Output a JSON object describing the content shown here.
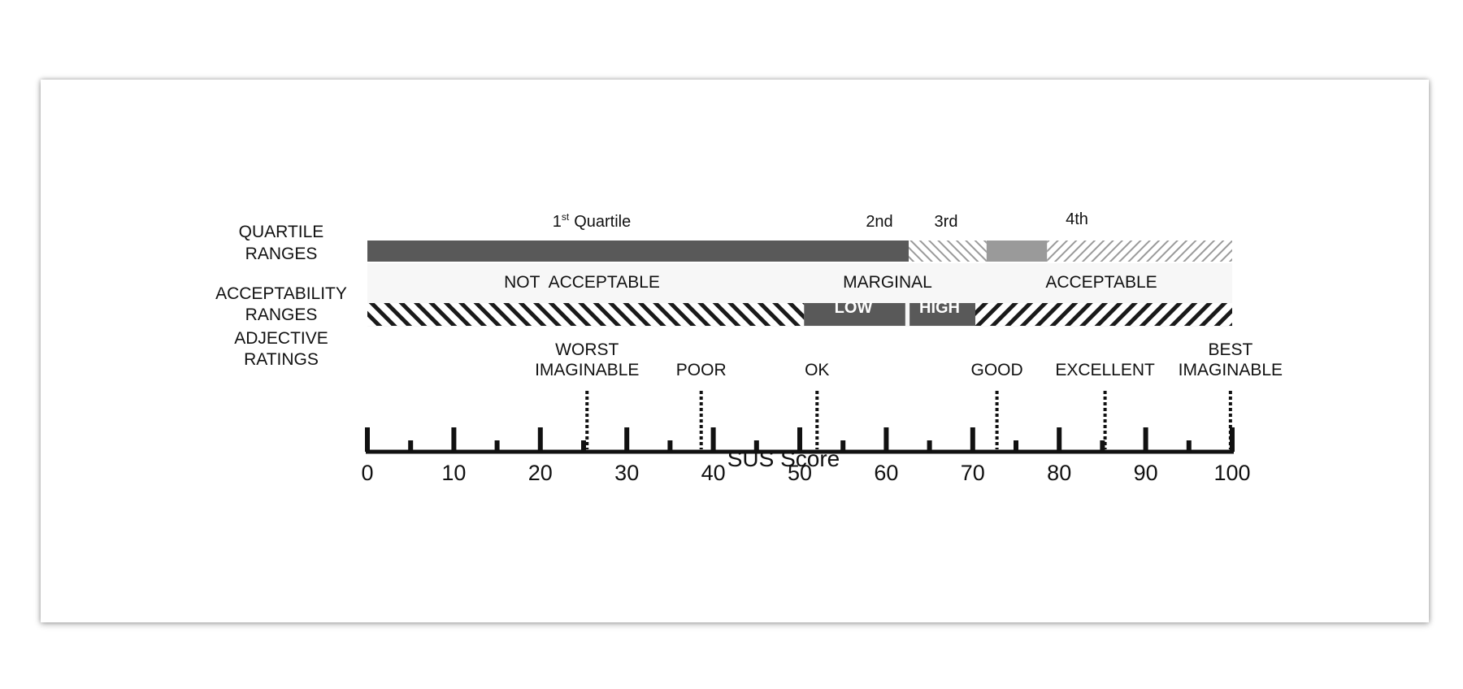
{
  "row_labels": {
    "quartile_line1": "QUARTILE",
    "quartile_line2": "RANGES",
    "acceptability_line1": "ACCEPTABILITY",
    "acceptability_line2": "RANGES",
    "adjective_line1": "ADJECTIVE",
    "adjective_line2": "RATINGS"
  },
  "quartiles": {
    "first_num": "1",
    "first_sup": "st",
    "first_word": "Quartile",
    "second": "2nd",
    "third": "3rd",
    "fourth": "4th",
    "ranges": [
      {
        "name": "1st",
        "from": 0,
        "to": 62.6,
        "style": "solid-dark"
      },
      {
        "name": "2nd",
        "from": 62.6,
        "to": 71.6,
        "style": "hatch-light-back"
      },
      {
        "name": "3rd",
        "from": 71.6,
        "to": 78.6,
        "style": "solid-mid"
      },
      {
        "name": "4th",
        "from": 78.6,
        "to": 100,
        "style": "hatch-light-forward"
      }
    ]
  },
  "acceptability": {
    "not_acceptable": "NOT  ACCEPTABLE",
    "marginal": "MARGINAL",
    "low": "LOW",
    "high": "HIGH",
    "acceptable": "ACCEPTABLE",
    "ranges": [
      {
        "name": "not_acceptable",
        "from": 0,
        "to": 50.5
      },
      {
        "name": "low",
        "from": 50.5,
        "to": 62.2
      },
      {
        "name": "high",
        "from": 62.7,
        "to": 70.3
      },
      {
        "name": "acceptable",
        "from": 70.3,
        "to": 100
      }
    ]
  },
  "adjectives": [
    {
      "lines": [
        "WORST",
        "IMAGINABLE"
      ],
      "score": 25.4
    },
    {
      "lines": [
        "POOR"
      ],
      "score": 38.6
    },
    {
      "lines": [
        "OK"
      ],
      "score": 52.0
    },
    {
      "lines": [
        "GOOD"
      ],
      "score": 72.8
    },
    {
      "lines": [
        "EXCELLENT"
      ],
      "score": 85.3
    },
    {
      "lines": [
        "BEST",
        "IMAGINABLE"
      ],
      "score": 99.8
    }
  ],
  "axis": {
    "title": "SUS Score",
    "min": 0,
    "max": 100,
    "major_ticks": [
      "0",
      "10",
      "20",
      "30",
      "40",
      "50",
      "60",
      "70",
      "80",
      "90",
      "100"
    ],
    "minor_ticks": [
      5,
      15,
      25,
      35,
      45,
      55,
      65,
      75,
      85,
      95
    ]
  },
  "colors": {
    "dark_bar": "#595959",
    "mid_bar": "#9a9a9a",
    "hatch_light": "#9a9a9a",
    "hatch_dark": "#1a1a1a",
    "band_background": "#f7f7f7",
    "axis": "#111111",
    "label_on_dark": "#ffffff"
  }
}
